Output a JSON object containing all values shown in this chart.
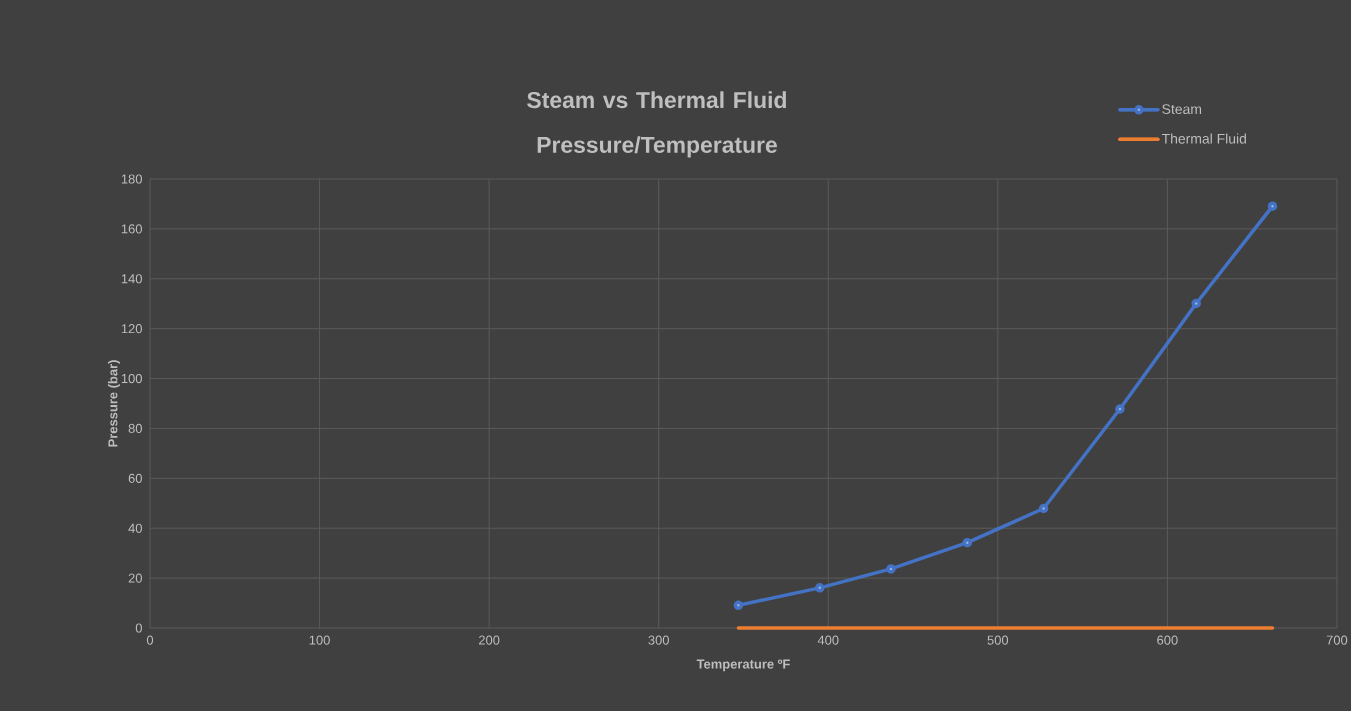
{
  "chart_data": {
    "type": "line",
    "title": "Steam vs Thermal Fluid Pressure/Temperature",
    "xlabel": "Temperature ºF",
    "ylabel": "Pressure (bar)",
    "xlim": [
      0,
      700
    ],
    "xticks": [
      0,
      100,
      200,
      300,
      400,
      500,
      600,
      700
    ],
    "ylim": [
      0,
      180
    ],
    "yticks": [
      0,
      20,
      40,
      60,
      80,
      100,
      120,
      140,
      160,
      180
    ],
    "grid": true,
    "legend": "top right",
    "line_style": "solid",
    "series": [
      {
        "name": "Steam",
        "color": "#4472c4",
        "marker": "circle",
        "x": [
          347,
          395,
          437,
          482,
          527,
          572,
          617,
          662
        ],
        "values": [
          9.1,
          16.1,
          23.7,
          34.2,
          47.9,
          87.8,
          130.1,
          169.1
        ]
      },
      {
        "name": "Thermal Fluid",
        "color": "#ed7d31",
        "marker": "none",
        "x": [
          347,
          662
        ],
        "values": [
          0,
          0
        ]
      }
    ]
  }
}
